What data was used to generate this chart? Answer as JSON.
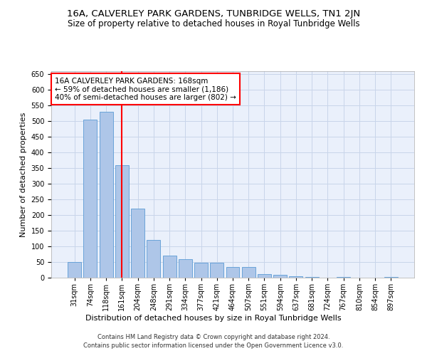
{
  "title": "16A, CALVERLEY PARK GARDENS, TUNBRIDGE WELLS, TN1 2JN",
  "subtitle": "Size of property relative to detached houses in Royal Tunbridge Wells",
  "xlabel": "Distribution of detached houses by size in Royal Tunbridge Wells",
  "ylabel": "Number of detached properties",
  "footer_line1": "Contains HM Land Registry data © Crown copyright and database right 2024.",
  "footer_line2": "Contains public sector information licensed under the Open Government Licence v3.0.",
  "categories": [
    "31sqm",
    "74sqm",
    "118sqm",
    "161sqm",
    "204sqm",
    "248sqm",
    "291sqm",
    "334sqm",
    "377sqm",
    "421sqm",
    "464sqm",
    "507sqm",
    "551sqm",
    "594sqm",
    "637sqm",
    "681sqm",
    "724sqm",
    "767sqm",
    "810sqm",
    "854sqm",
    "897sqm"
  ],
  "values": [
    50,
    505,
    530,
    360,
    220,
    120,
    70,
    60,
    47,
    47,
    35,
    35,
    12,
    10,
    5,
    3,
    0,
    3,
    0,
    1,
    3
  ],
  "bar_color": "#aec6e8",
  "bar_edgecolor": "#5b9bd5",
  "vline_x": 3.0,
  "vline_color": "red",
  "annotation_text": "16A CALVERLEY PARK GARDENS: 168sqm\n← 59% of detached houses are smaller (1,186)\n40% of semi-detached houses are larger (802) →",
  "annotation_box_color": "white",
  "annotation_box_edgecolor": "red",
  "ylim": [
    0,
    660
  ],
  "yticks": [
    0,
    50,
    100,
    150,
    200,
    250,
    300,
    350,
    400,
    450,
    500,
    550,
    600,
    650
  ],
  "bg_color": "#eaf0fb",
  "grid_color": "#c8d5ea",
  "title_fontsize": 9.5,
  "subtitle_fontsize": 8.5,
  "xlabel_fontsize": 8,
  "ylabel_fontsize": 8,
  "tick_fontsize": 7,
  "annot_fontsize": 7.5,
  "footer_fontsize": 6
}
